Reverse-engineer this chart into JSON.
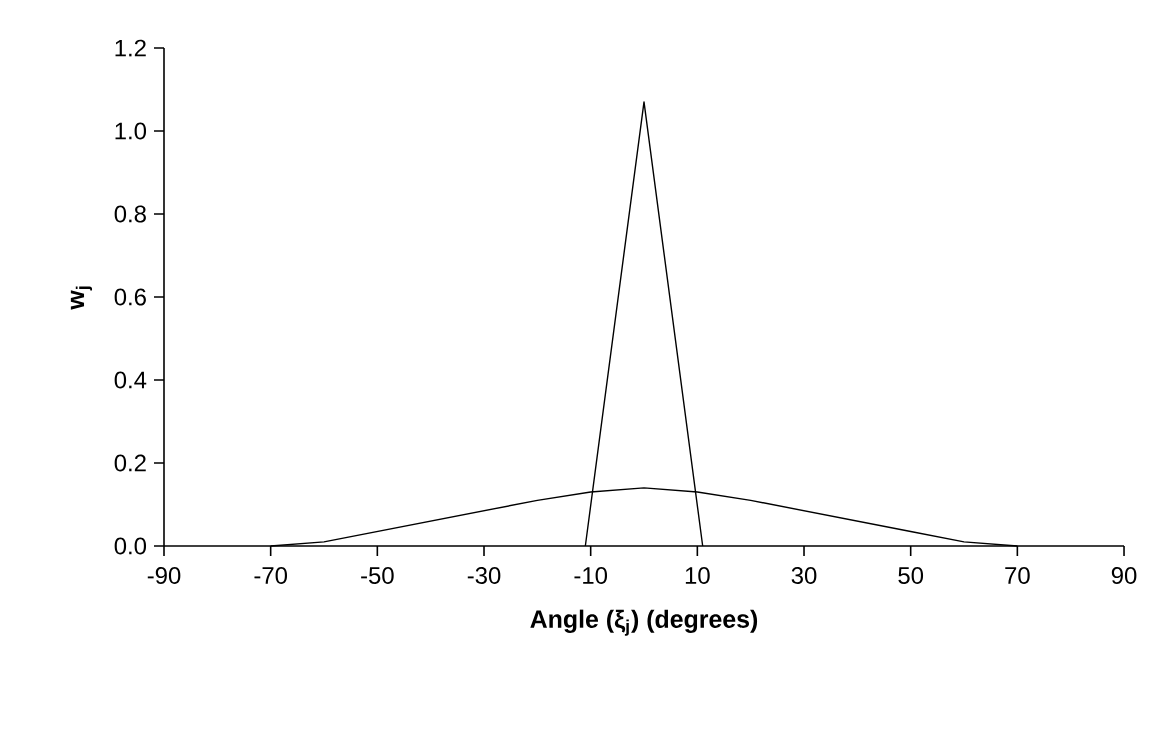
{
  "chart_data": {
    "type": "line",
    "xlabel": "Angle (ξ$_{j}$) (degrees)",
    "ylabel": "w$_{j}$",
    "xlim": [
      -90,
      90
    ],
    "xticks": [
      -90,
      -70,
      -50,
      -30,
      -10,
      10,
      30,
      50,
      70,
      90
    ],
    "ylim": [
      0,
      1.2
    ],
    "yticks": [
      {
        "value": 0,
        "label": "0.0"
      },
      {
        "value": 0.2,
        "label": "0.2"
      },
      {
        "value": 0.4,
        "label": "0.4"
      },
      {
        "value": 0.6,
        "label": "0.6"
      },
      {
        "value": 0.8,
        "label": "0.8"
      },
      {
        "value": 1.0,
        "label": "1.0"
      },
      {
        "value": 1.2,
        "label": "1.2"
      }
    ],
    "marker": "none",
    "line_style": "solid",
    "series": [
      {
        "color": "#000000",
        "x": [
          -11,
          0,
          11
        ],
        "values": [
          0,
          1.07,
          0
        ]
      },
      {
        "color": "#000000",
        "x": [
          -70,
          -60,
          -50,
          -40,
          -30,
          -20,
          -10,
          0,
          10,
          20,
          30,
          40,
          50,
          60,
          70
        ],
        "values": [
          0,
          0.01,
          0.035,
          0.06,
          0.085,
          0.11,
          0.13,
          0.14,
          0.13,
          0.11,
          0.085,
          0.06,
          0.035,
          0.01,
          0
        ]
      }
    ]
  }
}
